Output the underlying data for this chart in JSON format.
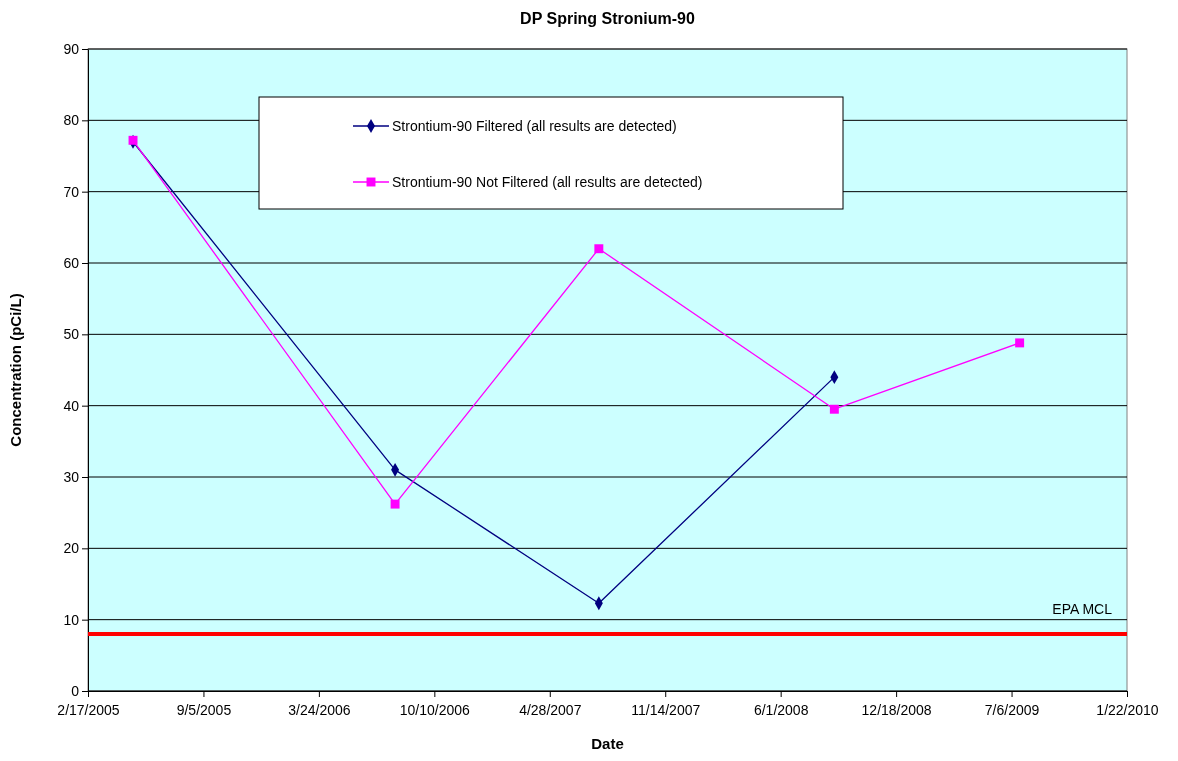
{
  "chart_data": {
    "type": "line",
    "title": "DP Spring Stronium-90",
    "xlabel": "Date",
    "ylabel": "Concentration (pCi/L)",
    "xlim": [
      "2005-02-17",
      "2010-01-22"
    ],
    "xticks": [
      {
        "value": "2005-02-17",
        "label": "2/17/2005"
      },
      {
        "value": "2005-09-05",
        "label": "9/5/2005"
      },
      {
        "value": "2006-03-24",
        "label": "3/24/2006"
      },
      {
        "value": "2006-10-10",
        "label": "10/10/2006"
      },
      {
        "value": "2007-04-28",
        "label": "4/28/2007"
      },
      {
        "value": "2007-11-14",
        "label": "11/14/2007"
      },
      {
        "value": "2008-06-01",
        "label": "6/1/2008"
      },
      {
        "value": "2008-12-18",
        "label": "12/18/2008"
      },
      {
        "value": "2009-07-06",
        "label": "7/6/2009"
      },
      {
        "value": "2010-01-22",
        "label": "1/22/2010"
      }
    ],
    "ylim": [
      0,
      90
    ],
    "yticks": [
      0,
      10,
      20,
      30,
      40,
      50,
      60,
      70,
      80,
      90
    ],
    "grid": "y",
    "legend": "top",
    "line_style": "solid",
    "series": [
      {
        "name": "Strontium-90 Filtered (all results are detected)",
        "color": "#000080",
        "marker": "diamond",
        "x": [
          "2005-05-06",
          "2006-08-03",
          "2007-07-22",
          "2008-09-02"
        ],
        "values": [
          77,
          31,
          12.3,
          44
        ]
      },
      {
        "name": "Strontium-90 Not Filtered (all results are detected)",
        "color": "#ff00ff",
        "marker": "square",
        "x": [
          "2005-05-06",
          "2006-08-03",
          "2007-07-22",
          "2008-09-02",
          "2009-07-20"
        ],
        "values": [
          77.2,
          26.2,
          62,
          39.5,
          48.8
        ]
      }
    ],
    "ref_lines": [
      {
        "axis": "y",
        "value": 8,
        "label": "EPA MCL",
        "color": "#ff0000"
      }
    ]
  }
}
